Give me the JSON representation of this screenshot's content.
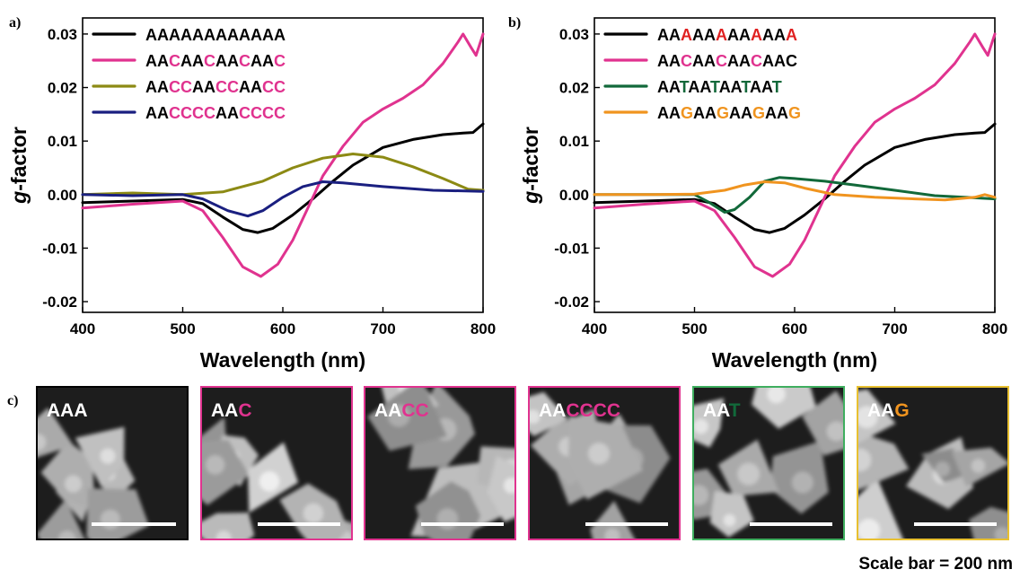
{
  "colors": {
    "black": "#000000",
    "magenta": "#e0338f",
    "olive": "#8c8a14",
    "navy": "#1a1f80",
    "green": "#12693a",
    "orange": "#f0941f",
    "red": "#e02020"
  },
  "chart_data": [
    {
      "type": "line",
      "panel": "a)",
      "xlabel": "Wavelength (nm)",
      "ylabel_italic": "g",
      "ylabel_rest": "-factor",
      "xlim": [
        400,
        800
      ],
      "ylim": [
        -0.022,
        0.033
      ],
      "xticks": [
        400,
        500,
        600,
        700,
        800
      ],
      "xtick_labels": [
        "400",
        "500",
        "600",
        "700",
        "800"
      ],
      "yticks": [
        -0.02,
        -0.01,
        0.0,
        0.01,
        0.02,
        0.03
      ],
      "ytick_labels": [
        "-0.02",
        "-0.01",
        "0.00",
        "0.01",
        "0.02",
        "0.03"
      ],
      "legend_position": "top-left",
      "series": [
        {
          "color": "#000000",
          "legend_segments": [
            {
              "text": "AAAAAAAAAAAA",
              "color": "#000000"
            }
          ],
          "points": [
            [
              400,
              -0.0015
            ],
            [
              450,
              -0.0012
            ],
            [
              500,
              -0.0009
            ],
            [
              520,
              -0.0017
            ],
            [
              540,
              -0.0042
            ],
            [
              560,
              -0.0065
            ],
            [
              575,
              -0.0071
            ],
            [
              590,
              -0.0063
            ],
            [
              610,
              -0.0038
            ],
            [
              630,
              -0.0008
            ],
            [
              650,
              0.0025
            ],
            [
              670,
              0.0055
            ],
            [
              700,
              0.0088
            ],
            [
              730,
              0.0103
            ],
            [
              760,
              0.0112
            ],
            [
              780,
              0.0115
            ],
            [
              790,
              0.0116
            ],
            [
              800,
              0.0132
            ]
          ]
        },
        {
          "color": "#e0338f",
          "legend_segments": [
            {
              "text": "AA",
              "color": "#000000"
            },
            {
              "text": "C",
              "color": "#e0338f"
            },
            {
              "text": "AA",
              "color": "#000000"
            },
            {
              "text": "C",
              "color": "#e0338f"
            },
            {
              "text": "AA",
              "color": "#000000"
            },
            {
              "text": "C",
              "color": "#e0338f"
            },
            {
              "text": "AA",
              "color": "#000000"
            },
            {
              "text": "C",
              "color": "#e0338f"
            }
          ],
          "points": [
            [
              400,
              -0.0025
            ],
            [
              450,
              -0.0018
            ],
            [
              500,
              -0.0012
            ],
            [
              520,
              -0.003
            ],
            [
              540,
              -0.008
            ],
            [
              560,
              -0.0135
            ],
            [
              578,
              -0.0153
            ],
            [
              595,
              -0.013
            ],
            [
              610,
              -0.0085
            ],
            [
              625,
              -0.0025
            ],
            [
              640,
              0.0035
            ],
            [
              660,
              0.009
            ],
            [
              680,
              0.0135
            ],
            [
              700,
              0.016
            ],
            [
              720,
              0.018
            ],
            [
              740,
              0.0205
            ],
            [
              760,
              0.0245
            ],
            [
              775,
              0.0285
            ],
            [
              780,
              0.03
            ],
            [
              788,
              0.0275
            ],
            [
              793,
              0.026
            ],
            [
              800,
              0.03
            ]
          ]
        },
        {
          "color": "#8c8a14",
          "legend_segments": [
            {
              "text": "AA",
              "color": "#000000"
            },
            {
              "text": "CC",
              "color": "#e0338f"
            },
            {
              "text": "AA",
              "color": "#000000"
            },
            {
              "text": "CC",
              "color": "#e0338f"
            },
            {
              "text": "AA",
              "color": "#000000"
            },
            {
              "text": "CC",
              "color": "#e0338f"
            }
          ],
          "points": [
            [
              400,
              0.0
            ],
            [
              450,
              0.0003
            ],
            [
              500,
              0.0
            ],
            [
              540,
              0.0005
            ],
            [
              580,
              0.0025
            ],
            [
              610,
              0.005
            ],
            [
              640,
              0.0068
            ],
            [
              670,
              0.0076
            ],
            [
              700,
              0.007
            ],
            [
              730,
              0.0052
            ],
            [
              760,
              0.003
            ],
            [
              785,
              0.001
            ],
            [
              800,
              0.0008
            ]
          ]
        },
        {
          "color": "#1a1f80",
          "legend_segments": [
            {
              "text": "AA",
              "color": "#000000"
            },
            {
              "text": "CCCC",
              "color": "#e0338f"
            },
            {
              "text": "AA",
              "color": "#000000"
            },
            {
              "text": "CCCC",
              "color": "#e0338f"
            }
          ],
          "points": [
            [
              400,
              0.0
            ],
            [
              450,
              -0.0002
            ],
            [
              500,
              0.0
            ],
            [
              520,
              -0.0008
            ],
            [
              545,
              -0.003
            ],
            [
              565,
              -0.004
            ],
            [
              580,
              -0.003
            ],
            [
              600,
              -0.0005
            ],
            [
              620,
              0.0015
            ],
            [
              640,
              0.0024
            ],
            [
              660,
              0.0022
            ],
            [
              700,
              0.0015
            ],
            [
              750,
              0.0008
            ],
            [
              800,
              0.0006
            ]
          ]
        }
      ]
    },
    {
      "type": "line",
      "panel": "b)",
      "xlabel": "Wavelength (nm)",
      "ylabel_italic": "g",
      "ylabel_rest": "-factor",
      "xlim": [
        400,
        800
      ],
      "ylim": [
        -0.022,
        0.033
      ],
      "xticks": [
        400,
        500,
        600,
        700,
        800
      ],
      "xtick_labels": [
        "400",
        "500",
        "600",
        "700",
        "800"
      ],
      "yticks": [
        -0.02,
        -0.01,
        0.0,
        0.01,
        0.02,
        0.03
      ],
      "ytick_labels": [
        "-0.02",
        "-0.01",
        "0.00",
        "0.01",
        "0.02",
        "0.03"
      ],
      "legend_position": "top-left",
      "series": [
        {
          "color": "#000000",
          "legend_segments": [
            {
              "text": "AA",
              "color": "#000000"
            },
            {
              "text": "A",
              "color": "#e02020"
            },
            {
              "text": "AA",
              "color": "#000000"
            },
            {
              "text": "A",
              "color": "#e02020"
            },
            {
              "text": "AA",
              "color": "#000000"
            },
            {
              "text": "A",
              "color": "#e02020"
            },
            {
              "text": "AA",
              "color": "#000000"
            },
            {
              "text": "A",
              "color": "#e02020"
            }
          ],
          "points": [
            [
              400,
              -0.0015
            ],
            [
              450,
              -0.0012
            ],
            [
              500,
              -0.0009
            ],
            [
              520,
              -0.0017
            ],
            [
              540,
              -0.0042
            ],
            [
              560,
              -0.0065
            ],
            [
              575,
              -0.0071
            ],
            [
              590,
              -0.0063
            ],
            [
              610,
              -0.0038
            ],
            [
              630,
              -0.0008
            ],
            [
              650,
              0.0025
            ],
            [
              670,
              0.0055
            ],
            [
              700,
              0.0088
            ],
            [
              730,
              0.0103
            ],
            [
              760,
              0.0112
            ],
            [
              780,
              0.0115
            ],
            [
              790,
              0.0116
            ],
            [
              800,
              0.0132
            ]
          ]
        },
        {
          "color": "#e0338f",
          "legend_segments": [
            {
              "text": "AA",
              "color": "#000000"
            },
            {
              "text": "C",
              "color": "#e0338f"
            },
            {
              "text": "AA",
              "color": "#000000"
            },
            {
              "text": "C",
              "color": "#e0338f"
            },
            {
              "text": "AA",
              "color": "#000000"
            },
            {
              "text": "C",
              "color": "#e0338f"
            },
            {
              "text": "AAC",
              "color": "#000000"
            }
          ],
          "points": [
            [
              400,
              -0.0025
            ],
            [
              450,
              -0.0018
            ],
            [
              500,
              -0.0012
            ],
            [
              520,
              -0.003
            ],
            [
              540,
              -0.008
            ],
            [
              560,
              -0.0135
            ],
            [
              578,
              -0.0153
            ],
            [
              595,
              -0.013
            ],
            [
              610,
              -0.0085
            ],
            [
              625,
              -0.0025
            ],
            [
              640,
              0.0035
            ],
            [
              660,
              0.009
            ],
            [
              680,
              0.0135
            ],
            [
              700,
              0.016
            ],
            [
              720,
              0.018
            ],
            [
              740,
              0.0205
            ],
            [
              760,
              0.0245
            ],
            [
              775,
              0.0285
            ],
            [
              780,
              0.03
            ],
            [
              788,
              0.0275
            ],
            [
              793,
              0.026
            ],
            [
              800,
              0.03
            ]
          ]
        },
        {
          "color": "#12693a",
          "legend_segments": [
            {
              "text": "AA",
              "color": "#000000"
            },
            {
              "text": "T",
              "color": "#12693a"
            },
            {
              "text": "AA",
              "color": "#000000"
            },
            {
              "text": "T",
              "color": "#12693a"
            },
            {
              "text": "AA",
              "color": "#000000"
            },
            {
              "text": "T",
              "color": "#12693a"
            },
            {
              "text": "AA",
              "color": "#000000"
            },
            {
              "text": "T",
              "color": "#12693a"
            }
          ],
          "points": [
            [
              400,
              0.0
            ],
            [
              480,
              0.0
            ],
            [
              500,
              0.0
            ],
            [
              515,
              -0.0015
            ],
            [
              530,
              -0.0033
            ],
            [
              540,
              -0.0028
            ],
            [
              555,
              -0.0005
            ],
            [
              570,
              0.0025
            ],
            [
              585,
              0.0032
            ],
            [
              600,
              0.003
            ],
            [
              630,
              0.0025
            ],
            [
              660,
              0.0018
            ],
            [
              700,
              0.0008
            ],
            [
              740,
              -0.0002
            ],
            [
              770,
              -0.0005
            ],
            [
              800,
              -0.0008
            ]
          ]
        },
        {
          "color": "#f0941f",
          "legend_segments": [
            {
              "text": "AA",
              "color": "#000000"
            },
            {
              "text": "G",
              "color": "#f0941f"
            },
            {
              "text": "AA",
              "color": "#000000"
            },
            {
              "text": "G",
              "color": "#f0941f"
            },
            {
              "text": "AA",
              "color": "#000000"
            },
            {
              "text": "G",
              "color": "#f0941f"
            },
            {
              "text": "AA",
              "color": "#000000"
            },
            {
              "text": "G",
              "color": "#f0941f"
            }
          ],
          "points": [
            [
              400,
              0.0
            ],
            [
              460,
              0.0
            ],
            [
              500,
              0.0001
            ],
            [
              530,
              0.0008
            ],
            [
              550,
              0.0018
            ],
            [
              570,
              0.0024
            ],
            [
              590,
              0.0022
            ],
            [
              610,
              0.0012
            ],
            [
              640,
              0.0
            ],
            [
              680,
              -0.0005
            ],
            [
              720,
              -0.0008
            ],
            [
              750,
              -0.001
            ],
            [
              780,
              -0.0005
            ],
            [
              790,
              0.0
            ],
            [
              800,
              -0.0005
            ]
          ]
        }
      ]
    }
  ],
  "panel_c": {
    "letter": "c)",
    "tiles": [
      {
        "segments": [
          {
            "text": "AAA",
            "color": "#ffffff"
          }
        ],
        "border": "#000000"
      },
      {
        "segments": [
          {
            "text": "AA",
            "color": "#ffffff"
          },
          {
            "text": "C",
            "color": "#e0338f"
          }
        ],
        "border": "#e0338f"
      },
      {
        "segments": [
          {
            "text": "AA",
            "color": "#ffffff"
          },
          {
            "text": "CC",
            "color": "#e0338f"
          }
        ],
        "border": "#e0338f"
      },
      {
        "segments": [
          {
            "text": "AA",
            "color": "#ffffff"
          },
          {
            "text": "CCCC",
            "color": "#e0338f"
          }
        ],
        "border": "#e0338f"
      },
      {
        "segments": [
          {
            "text": "AA",
            "color": "#ffffff"
          },
          {
            "text": "T",
            "color": "#12693a"
          }
        ],
        "border": "#3fae5f"
      },
      {
        "segments": [
          {
            "text": "AA",
            "color": "#ffffff"
          },
          {
            "text": "G",
            "color": "#f0941f"
          }
        ],
        "border": "#e8c030"
      }
    ],
    "scale_caption": "Scale bar = 200 nm"
  }
}
